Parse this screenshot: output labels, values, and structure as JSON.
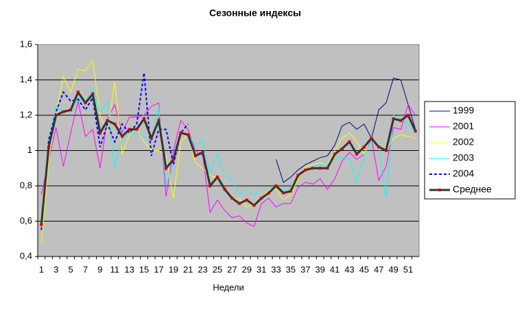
{
  "chart_data": {
    "type": "line",
    "title": "Сезонные индексы",
    "x_label": "Недели",
    "categories": [
      "1",
      null,
      "3",
      null,
      "5",
      null,
      "7",
      null,
      "9",
      null,
      "11",
      null,
      "13",
      null,
      "15",
      null,
      "17",
      null,
      "19",
      null,
      "21",
      null,
      "23",
      null,
      "25",
      null,
      "27",
      null,
      "29",
      null,
      "31",
      null,
      "33",
      null,
      "35",
      null,
      "37",
      null,
      "39",
      null,
      "41",
      null,
      "43",
      null,
      "45",
      null,
      "47",
      null,
      "49",
      null,
      "51",
      null
    ],
    "ylim": [
      0.4,
      1.6
    ],
    "yticks": [
      {
        "value": 0.4,
        "label": "0,4"
      },
      {
        "value": 0.6,
        "label": "0,6"
      },
      {
        "value": 0.8,
        "label": "0,8"
      },
      1,
      {
        "value": 1.2,
        "label": "1,2"
      },
      {
        "value": 1.4,
        "label": "1,4"
      },
      {
        "value": 1.6,
        "label": "1,6"
      }
    ],
    "grid": true,
    "legend": "right",
    "series": [
      {
        "name": "1999",
        "color": "#000080",
        "line_style": "solid",
        "values": [
          null,
          null,
          null,
          null,
          null,
          null,
          null,
          null,
          null,
          null,
          null,
          null,
          null,
          null,
          null,
          null,
          null,
          null,
          null,
          null,
          null,
          null,
          null,
          null,
          null,
          null,
          null,
          null,
          null,
          null,
          null,
          null,
          0.95,
          0.82,
          0.85,
          0.89,
          0.92,
          0.94,
          0.96,
          0.97,
          1.03,
          1.14,
          1.16,
          1.12,
          1.15,
          1.07,
          1.23,
          1.27,
          1.41,
          1.4,
          1.26,
          1.12
        ]
      },
      {
        "name": "2001",
        "color": "#ff00ff",
        "line_style": "solid",
        "values": [
          0.75,
          0.95,
          1.13,
          0.91,
          1.1,
          1.28,
          1.08,
          1.12,
          0.9,
          1.18,
          1.26,
          1.1,
          1.19,
          1.19,
          1.2,
          1.25,
          1.27,
          0.74,
          1.0,
          1.17,
          1.12,
          1.0,
          0.97,
          0.65,
          0.72,
          0.66,
          0.62,
          0.63,
          0.59,
          0.57,
          0.7,
          0.73,
          0.68,
          0.7,
          0.7,
          0.79,
          0.82,
          0.81,
          0.84,
          0.78,
          0.84,
          0.94,
          0.99,
          0.95,
          0.98,
          1.07,
          0.83,
          0.91,
          1.13,
          1.12,
          1.26,
          1.2
        ]
      },
      {
        "name": "2002",
        "color": "#ffff00",
        "line_style": "solid",
        "values": [
          0.48,
          0.95,
          1.22,
          1.42,
          1.33,
          1.46,
          1.45,
          1.51,
          1.2,
          1.1,
          1.39,
          0.98,
          1.09,
          1.12,
          1.05,
          1.0,
          1.0,
          0.97,
          0.73,
          1.05,
          1.09,
          0.93,
          0.9,
          0.86,
          0.84,
          0.78,
          0.72,
          0.73,
          0.68,
          0.7,
          0.73,
          0.78,
          0.78,
          0.72,
          0.75,
          0.84,
          0.91,
          0.92,
          0.93,
          0.92,
          1.0,
          1.07,
          1.1,
          1.05,
          0.98,
          1.08,
          1.01,
          1.0,
          1.07,
          1.09,
          1.08,
          1.07
        ]
      },
      {
        "name": "2003",
        "color": "#00ffff",
        "line_style": "solid",
        "values": [
          0.6,
          1.05,
          1.25,
          1.22,
          1.22,
          1.3,
          1.27,
          1.35,
          1.22,
          1.27,
          0.9,
          1.07,
          1.1,
          1.1,
          1.08,
          1.05,
          1.25,
          0.8,
          0.92,
          1.1,
          1.09,
          1.03,
          1.06,
          0.87,
          0.98,
          0.86,
          0.83,
          0.75,
          0.78,
          0.75,
          0.78,
          0.78,
          0.8,
          0.77,
          0.79,
          0.86,
          0.89,
          0.91,
          0.92,
          0.92,
          0.95,
          0.96,
          0.95,
          0.82,
          0.97,
          1.05,
          1.03,
          0.73,
          1.2,
          1.18,
          1.15,
          1.1
        ]
      },
      {
        "name": "2004",
        "color": "#0000ff",
        "line_style": "dashed",
        "values": [
          0.55,
          1.06,
          1.22,
          1.33,
          1.28,
          1.29,
          1.23,
          1.3,
          1.02,
          1.15,
          1.05,
          1.15,
          1.1,
          1.15,
          1.44,
          0.97,
          1.12,
          1.12,
          0.92,
          1.1,
          1.15,
          null,
          null,
          null,
          null,
          null,
          null,
          null,
          null,
          null,
          null,
          null,
          null,
          null,
          null,
          null,
          null,
          null,
          null,
          null,
          null,
          null,
          null,
          null,
          null,
          null,
          null,
          null,
          null,
          null,
          null,
          null
        ]
      },
      {
        "name": "Среднее",
        "color": "#333333",
        "line_style": "thick",
        "marker_color": "#cc0000",
        "values": [
          0.58,
          1.02,
          1.2,
          1.22,
          1.23,
          1.33,
          1.27,
          1.32,
          1.1,
          1.17,
          1.15,
          1.08,
          1.12,
          1.12,
          1.18,
          1.07,
          1.17,
          0.9,
          0.95,
          1.1,
          1.09,
          0.97,
          0.99,
          0.8,
          0.85,
          0.78,
          0.73,
          0.7,
          0.72,
          0.69,
          0.73,
          0.76,
          0.8,
          0.76,
          0.77,
          0.86,
          0.89,
          0.9,
          0.9,
          0.9,
          0.98,
          1.01,
          1.05,
          0.98,
          1.02,
          1.07,
          1.02,
          1.0,
          1.18,
          1.17,
          1.2,
          1.11
        ]
      }
    ]
  }
}
